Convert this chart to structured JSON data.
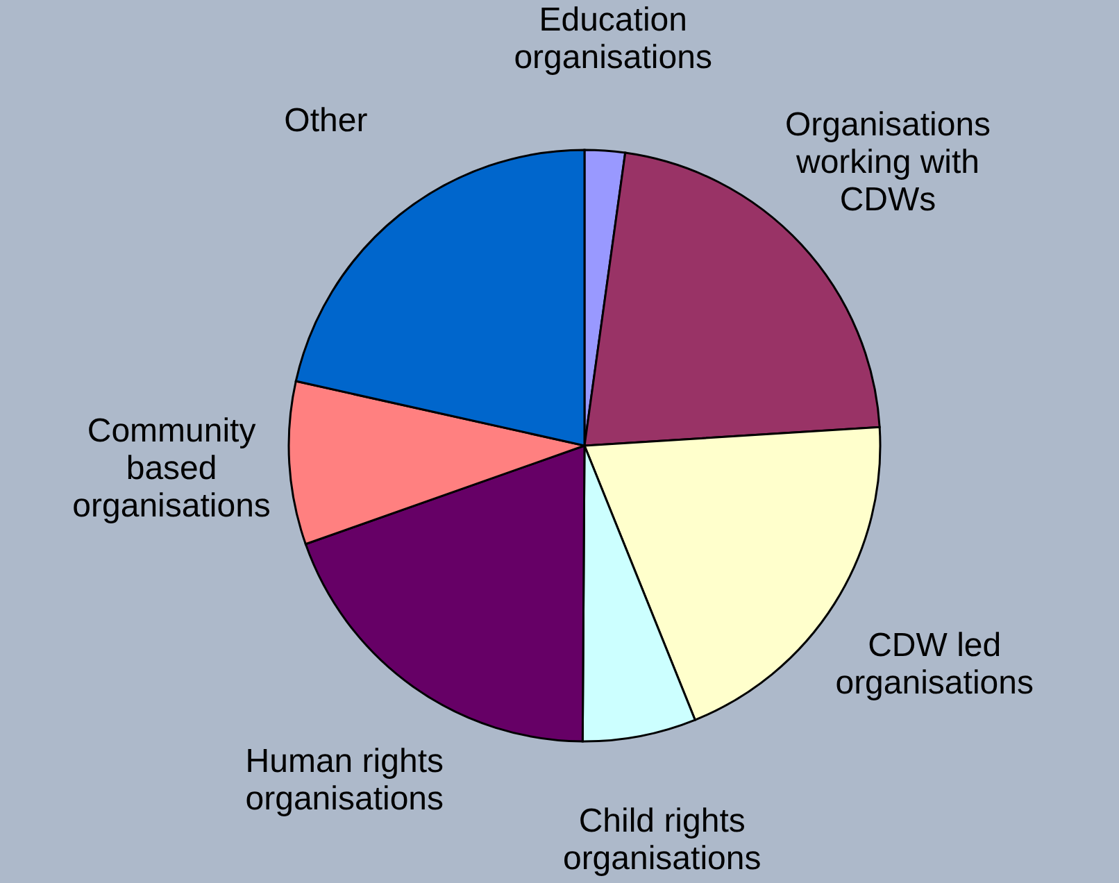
{
  "chart_data": {
    "type": "pie",
    "categories": [
      "Education\norganisations",
      "Organisations\nworking with\nCDWs",
      "CDW led\norganisations",
      "Child rights\norganisations",
      "Human rights\norganisations",
      "Community\nbased\norganisations",
      "Other"
    ],
    "values": [
      2.2,
      21.8,
      19.9,
      6.2,
      19.5,
      8.9,
      21.5
    ],
    "colors": [
      "#9999ff",
      "#993366",
      "#ffffcc",
      "#ccffff",
      "#660066",
      "#ff8080",
      "#0066cc"
    ]
  }
}
